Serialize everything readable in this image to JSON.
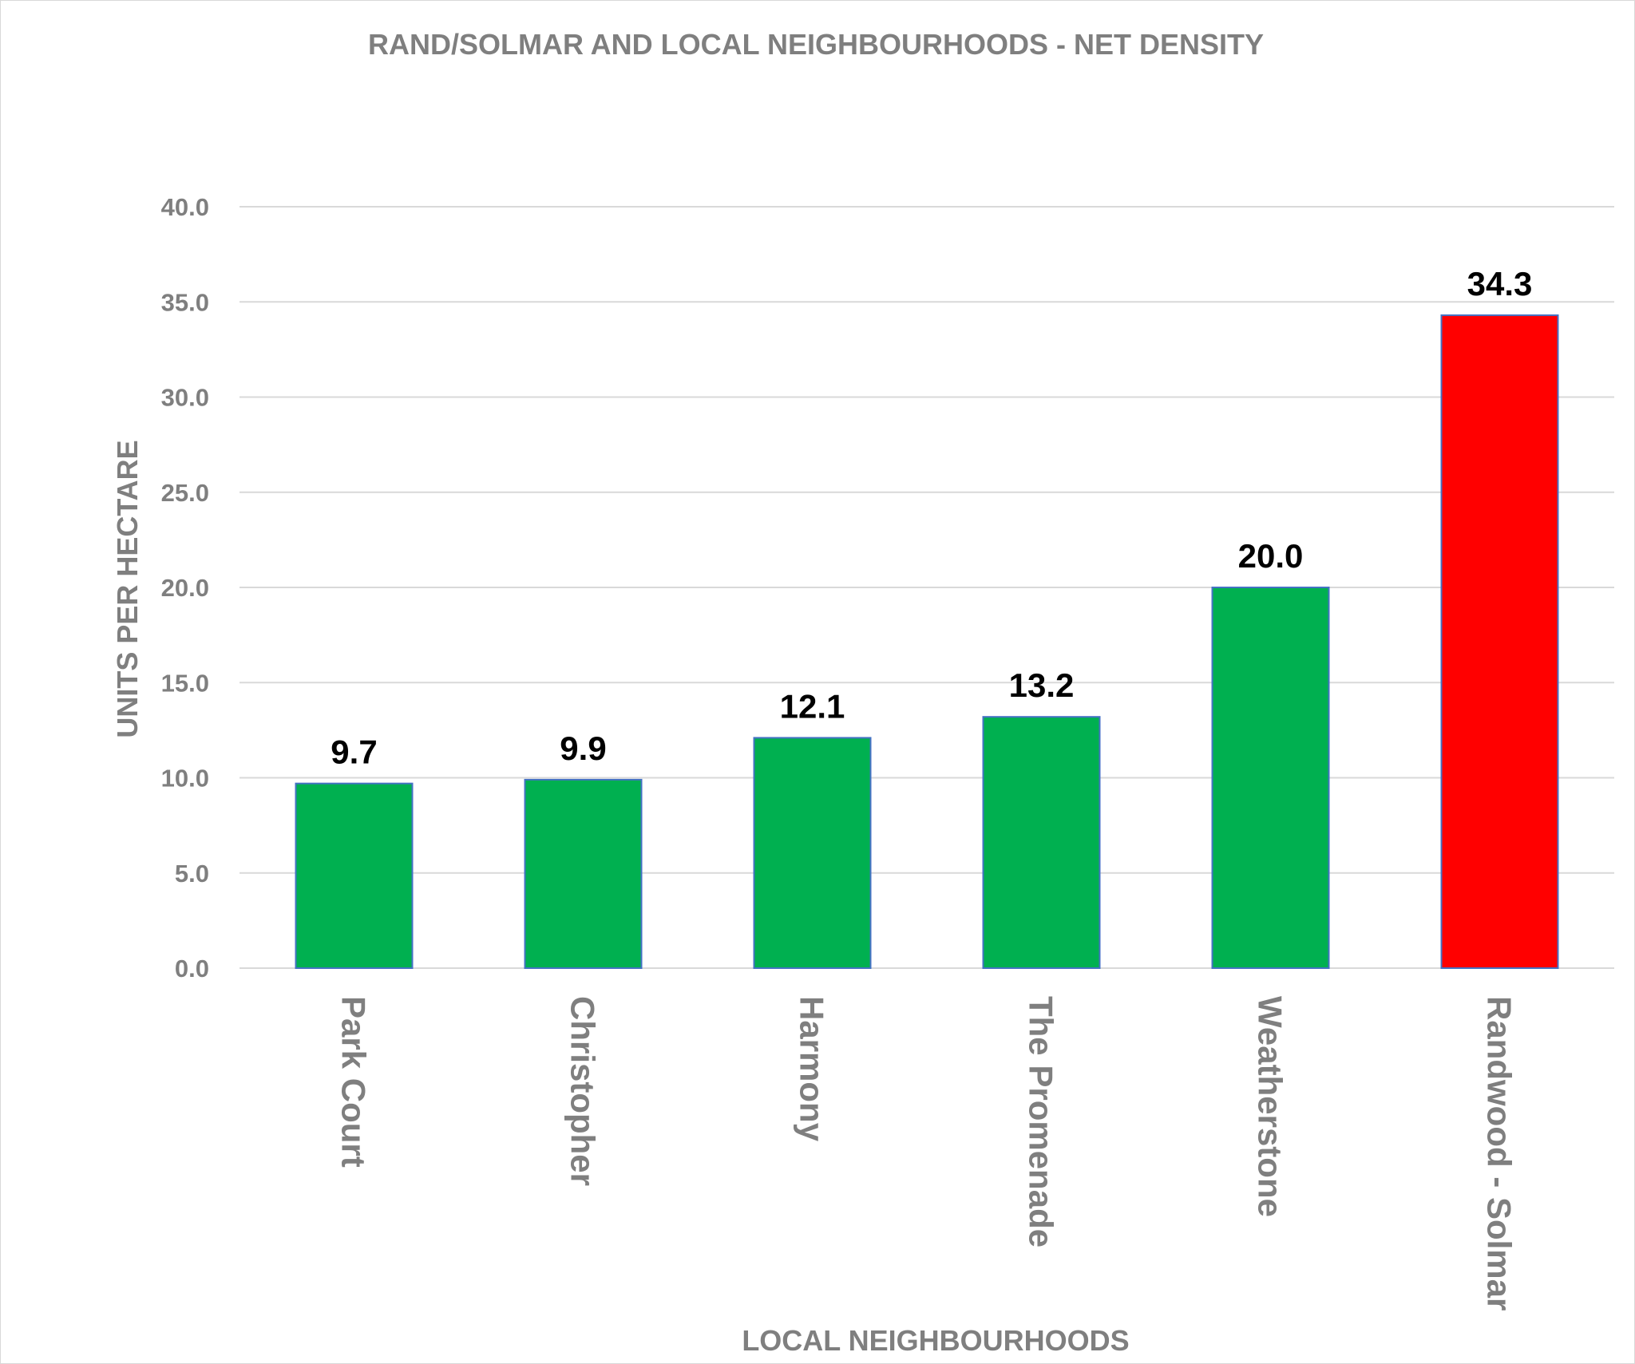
{
  "chart_data": {
    "type": "bar",
    "title": "RAND/SOLMAR AND LOCAL NEIGHBOURHOODS - NET DENSITY",
    "xlabel": "LOCAL NEIGHBOURHOODS",
    "ylabel": "UNITS PER HECTARE",
    "categories": [
      "Park Court",
      "Christopher",
      "Harmony",
      "The Promenade",
      "Weatherstone",
      "Randwood - Solmar"
    ],
    "values": [
      9.7,
      9.9,
      12.1,
      13.2,
      20.0,
      34.3
    ],
    "data_labels": [
      "9.7",
      "9.9",
      "12.1",
      "13.2",
      "20.0",
      "34.3"
    ],
    "colors": [
      "#00b050",
      "#00b050",
      "#00b050",
      "#00b050",
      "#00b050",
      "#ff0000"
    ],
    "bar_border_color": "#4472c4",
    "ylim": [
      0,
      40
    ],
    "yticks": [
      "0.0",
      "5.0",
      "10.0",
      "15.0",
      "20.0",
      "25.0",
      "30.0",
      "35.0",
      "40.0"
    ],
    "grid": true,
    "legend": "none"
  }
}
